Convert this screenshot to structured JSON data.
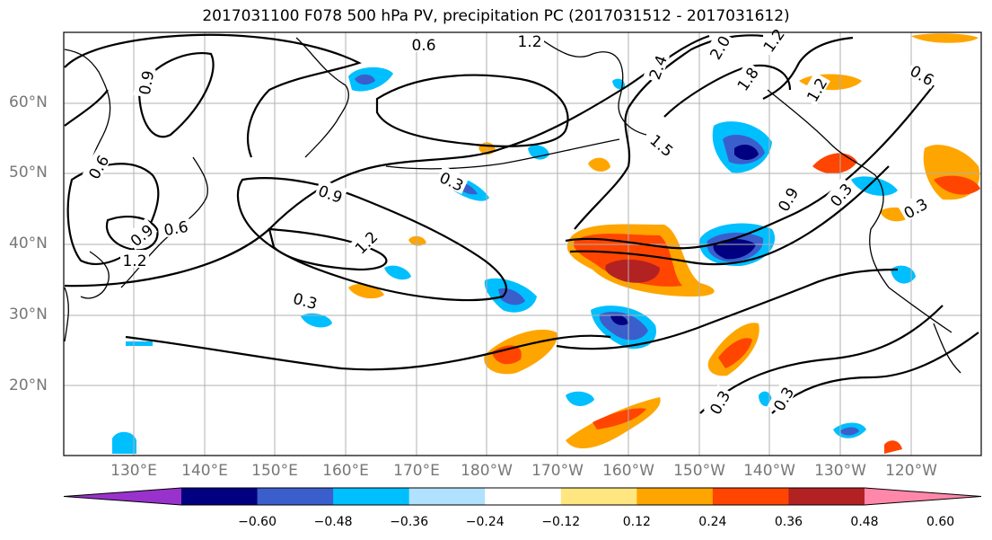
{
  "title": "2017031100 F078 500 hPa PV, precipitation PC (2017031512 - 2017031612)",
  "lat_labels": [
    "60°N",
    "50°N",
    "40°N",
    "30°N",
    "20°N"
  ],
  "lon_labels": [
    "130°E",
    "140°E",
    "150°E",
    "160°E",
    "170°E",
    "180°W",
    "170°W",
    "160°W",
    "150°W",
    "140°W",
    "130°W",
    "120°W"
  ],
  "contour_labels": [
    "0.6",
    "1.2",
    "0.9",
    "2.4",
    "2.0",
    "1.8",
    "1.5",
    "1.2",
    "0.9",
    "0.9",
    "0.6",
    "1.2",
    "0.3",
    "0.3",
    "0.3",
    "0.3",
    "0.6",
    "0.3",
    "0.3",
    "0.6",
    "1.2",
    "0.9",
    "1.2"
  ],
  "colorbar": {
    "ticks": [
      "−0.60",
      "−0.48",
      "−0.36",
      "−0.24",
      "−0.12",
      "0.12",
      "0.24",
      "0.36",
      "0.48",
      "0.60"
    ],
    "colors": [
      "#9932cc",
      "#000080",
      "#3a5fcd",
      "#00bfff",
      "#b0e2ff",
      "#ffffff",
      "#ffe680",
      "#ffa500",
      "#ff4500",
      "#b22222",
      "#ff88aa"
    ]
  }
}
